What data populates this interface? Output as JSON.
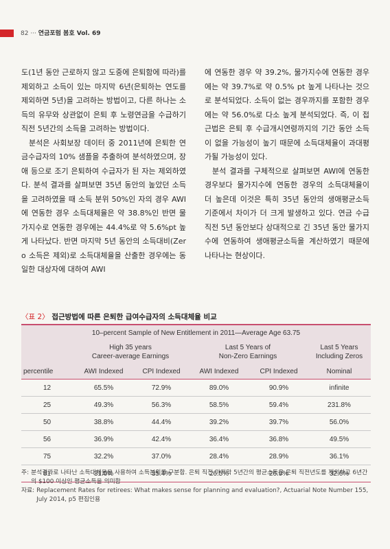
{
  "header": {
    "page_no": "82",
    "sep": "···",
    "journal": "연금포럼 봄호 Vol. 69"
  },
  "body": {
    "left_paragraphs": [
      "도(1년 동안 근로하지 않고 도중에 은퇴함에 따라)를 제외하고 소득이 있는 마지막 6년(은퇴하는 연도를 제외하면 5년)을 고려하는 방법이고, 다른 하나는 소득의 유무와 상관없이 은퇴 후 노령연금을 수급하기 직전 5년간의 소득을 고려하는 방법이다.",
      "분석은 사회보장 데이터 중 2011년에 은퇴한 연금수급자의 10% 샘플을 추출하여 분석하였으며, 장애 등으로 조기 은퇴하여 수급자가 된 자는 제외하였다. 분석 결과를 살펴보면 35년 동안의 높았던 소득을 고려하였을 때 소득 분위 50%인 자의 경우 AWI에 연동한 경우 소득대체율은 약 38.8%인 반면 물가지수로 연동한 경우에는 44.4%로 약 5.6%pt 높게 나타났다. 반면 마지막 5년 동안의 소득대비(Zero 소득은 제외)로 소득대체율을 산출한 경우에는 동일한 대상자에 대하여 AWI"
    ],
    "right_paragraphs": [
      "에 연동한 경우 약 39.2%, 물가지수에 연동한 경우에는 약 39.7%로 약 0.5% pt 높게 나타나는 것으로 분석되었다. 소득이 없는 경우까지를 포함한 경우에는 약 56.0%로 다소 높게 분석되었다. 즉, 이 접근법은 은퇴 후 수급개시연령까지의 기간 동안 소득이 없을 가능성이 높기 때문에 소득대체율이 과대평가될 가능성이 있다.",
      "분석 결과를 구체적으로 살펴보면 AWI에 연동한 경우보다 물가지수에 연동한 경우의 소득대체율이 더 높은데 이것은 특히 35년 동안의 생애평균소득 기준에서 차이가 더 크게 발생하고 있다. 연금 수급 직전 5년 동안보다 상대적으로 긴 35년 동안 물가지수에 연동하여 생애평균소득을 계산하였기 때문에 나타나는 현상이다."
    ]
  },
  "table": {
    "label": "〈표 2〉",
    "title": "접근방법에 따른 은퇴한 급여수급자의 소득대체율 비교",
    "top_header": "10–percent Sample of New Entitlement in 2011—Average Age 63.75",
    "groups": [
      {
        "line1": "High 35 years",
        "line2": "Career-average Earnings"
      },
      {
        "line1": "Last 5 Years of",
        "line2": "Non-Zero Earnings"
      },
      {
        "line1": "Last 5 Years",
        "line2": "Including Zeros"
      }
    ],
    "subheaders": [
      "percentile",
      "AWI Indexed",
      "CPI Indexed",
      "AWI Indexed",
      "CPI Indexed",
      "Nominal"
    ],
    "rows": [
      [
        "12",
        "65.5%",
        "72.9%",
        "89.0%",
        "90.9%",
        "infinite"
      ],
      [
        "25",
        "49.3%",
        "56.3%",
        "58.5%",
        "59.4%",
        "231.8%"
      ],
      [
        "50",
        "38.8%",
        "44.4%",
        "39.2%",
        "39.7%",
        "56.0%"
      ],
      [
        "56",
        "36.9%",
        "42.4%",
        "36.4%",
        "36.8%",
        "49.5%"
      ],
      [
        "75",
        "32.2%",
        "37.0%",
        "28.4%",
        "28.9%",
        "36.1%"
      ],
      [
        "81",
        "31.0%",
        "35.4%",
        "26.5%",
        "26.9%",
        "32.6%"
      ]
    ]
  },
  "notes": [
    {
      "tag": "주:",
      "text": "분석결과로 나타난 소득대체율을 사용하여 소득분위를 구분함. 은퇴 직전 마지막 5년간의 평균소득은 은퇴 직전년도를 제외하고 6년간의 $100 이상인 평균소득을 의미함"
    },
    {
      "tag": "자료:",
      "text": "Replacement Rates for retirees: What makes sense for planning and evaluation?, Actuarial Note Number 155, July 2014, p5 편집인용"
    }
  ],
  "colors": {
    "accent_red": "#d4262a",
    "table_rule": "#c84e6e",
    "table_header_bg": "#eadfe2",
    "page_bg": "#f7f6f2"
  }
}
